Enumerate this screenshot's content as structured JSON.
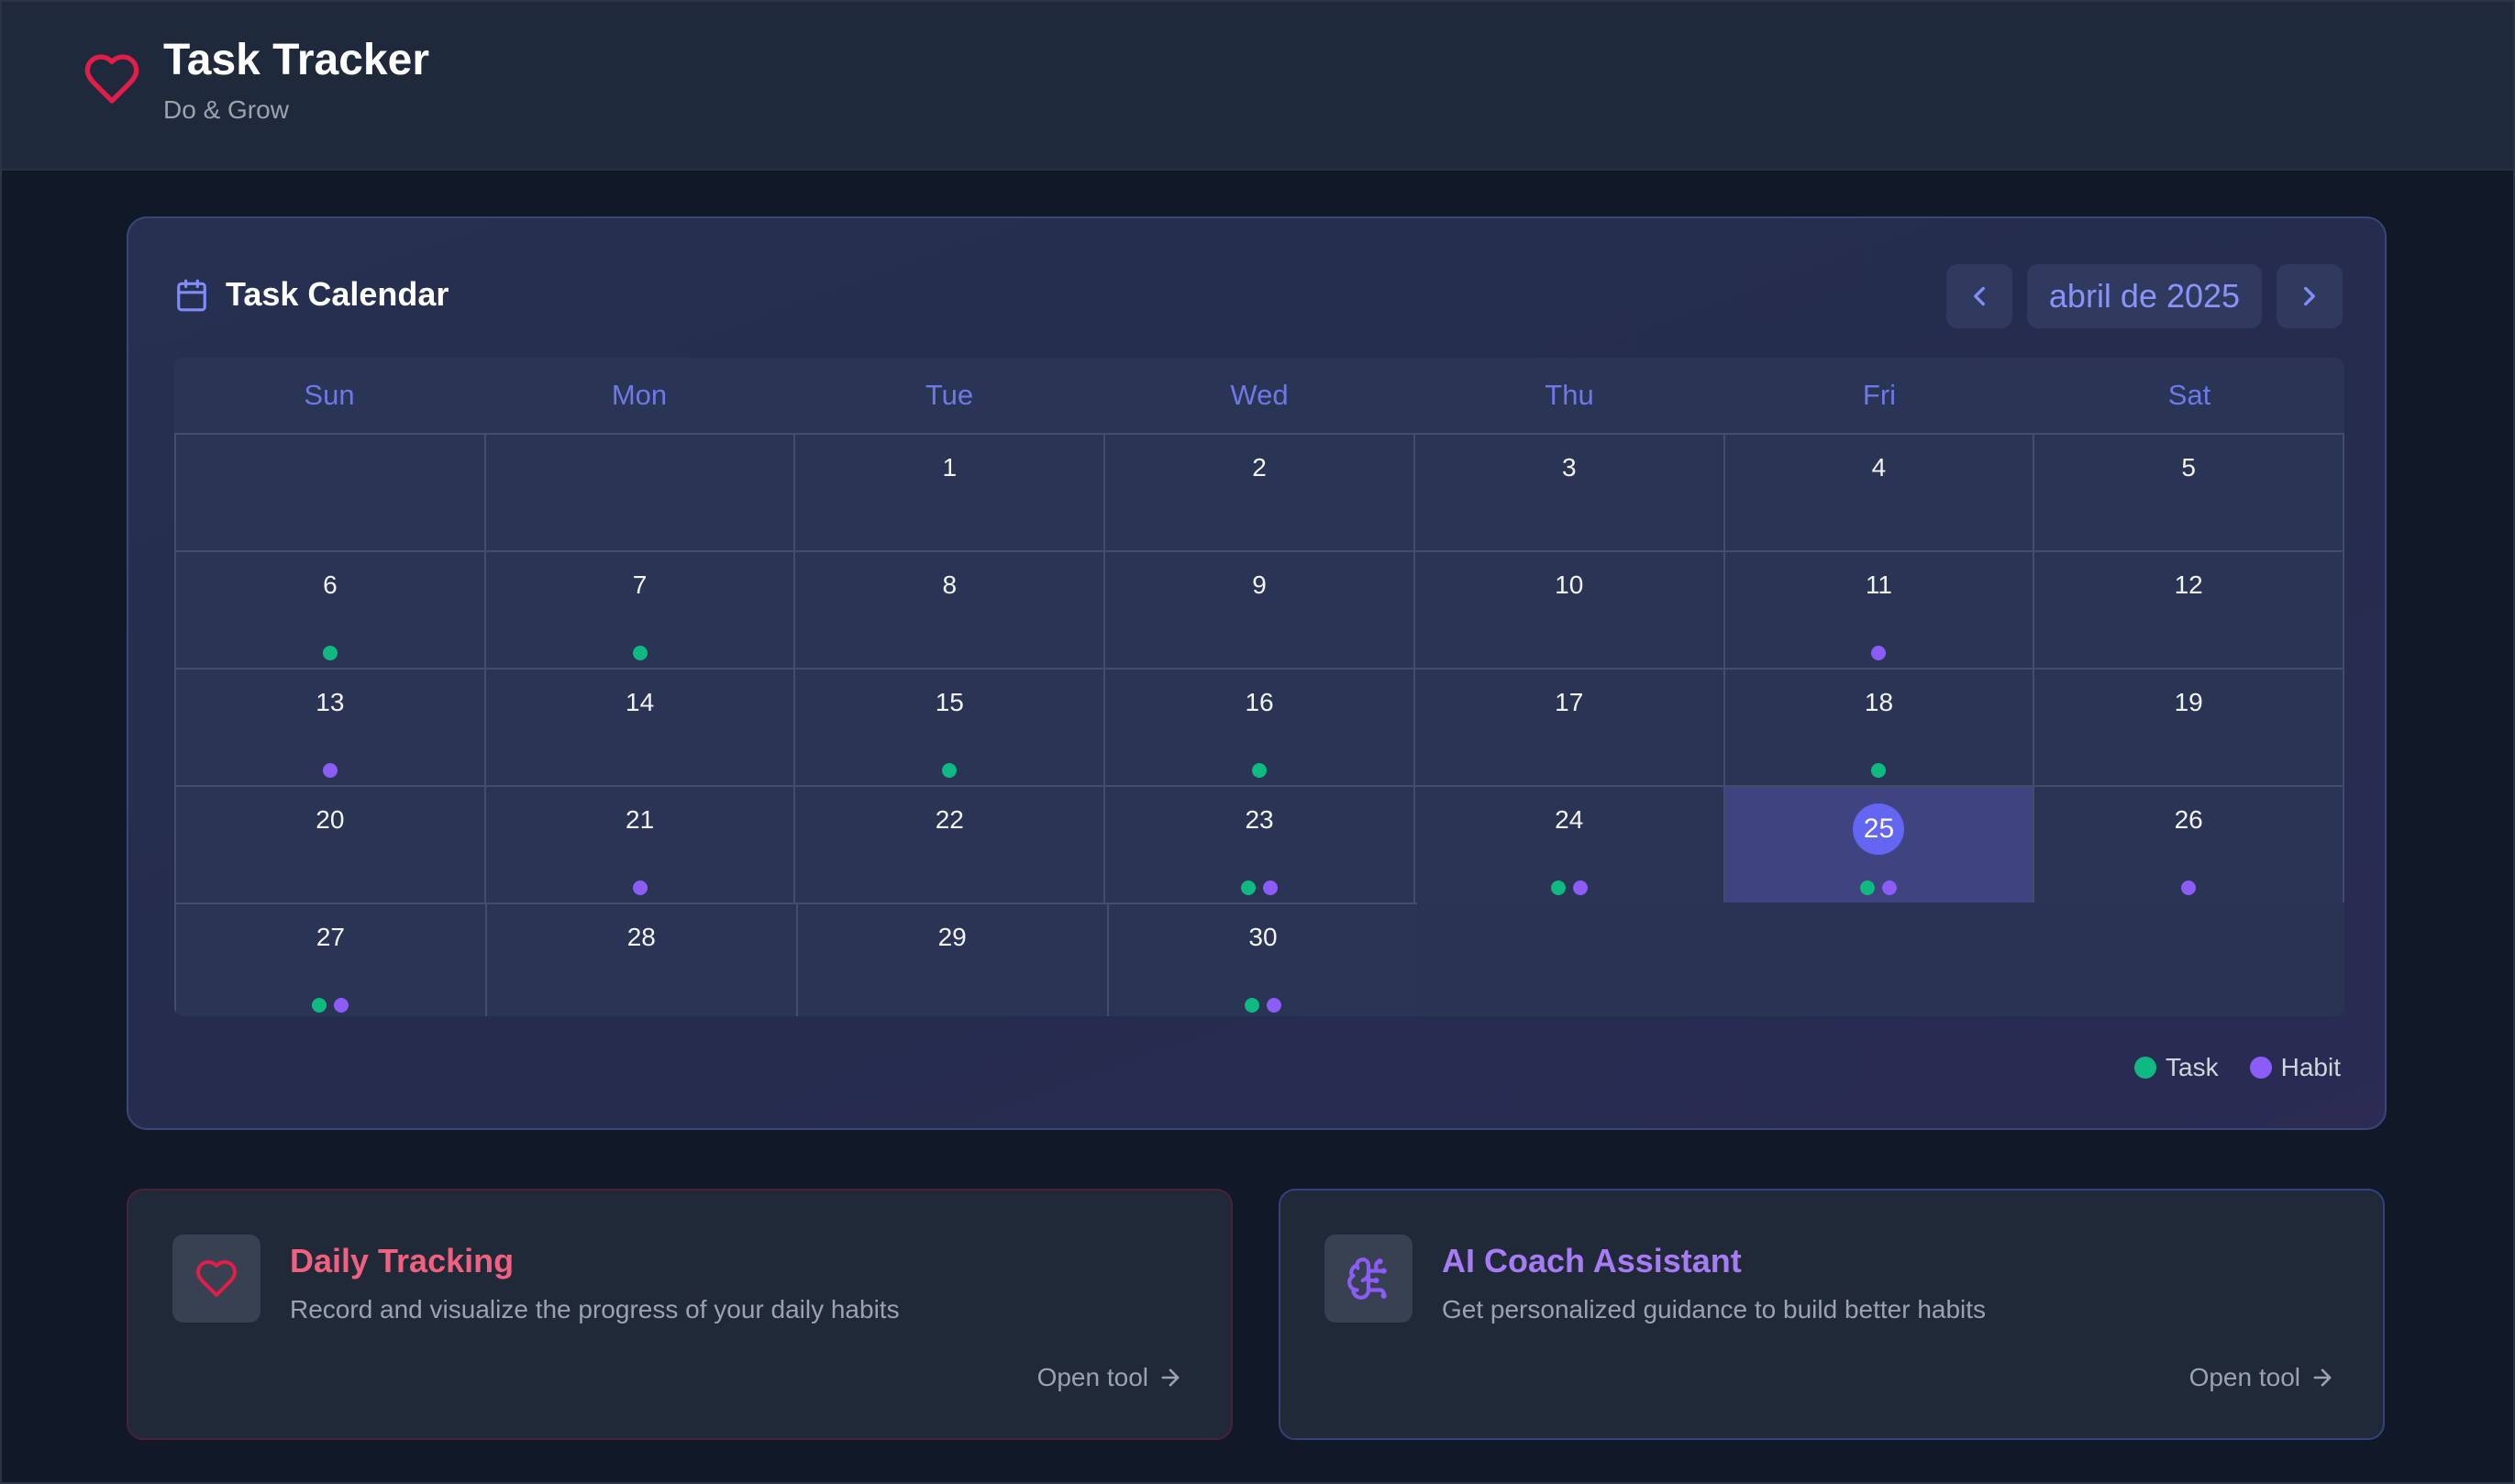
{
  "app": {
    "title": "Task Tracker",
    "subtitle": "Do & Grow",
    "logo_icon": "heart-icon",
    "accent_color": "#e11d48"
  },
  "calendar": {
    "title": "Task Calendar",
    "month_label": "abril de 2025",
    "prev_icon": "chevron-left-icon",
    "next_icon": "chevron-right-icon",
    "weekdays": [
      "Sun",
      "Mon",
      "Tue",
      "Wed",
      "Thu",
      "Fri",
      "Sat"
    ],
    "today": "25",
    "weeks": [
      [
        null,
        null,
        {
          "day": "1",
          "marks": []
        },
        {
          "day": "2",
          "marks": []
        },
        {
          "day": "3",
          "marks": []
        },
        {
          "day": "4",
          "marks": []
        },
        {
          "day": "5",
          "marks": []
        }
      ],
      [
        {
          "day": "6",
          "marks": [
            "task"
          ]
        },
        {
          "day": "7",
          "marks": [
            "task"
          ]
        },
        {
          "day": "8",
          "marks": []
        },
        {
          "day": "9",
          "marks": []
        },
        {
          "day": "10",
          "marks": []
        },
        {
          "day": "11",
          "marks": [
            "habit"
          ]
        },
        {
          "day": "12",
          "marks": []
        }
      ],
      [
        {
          "day": "13",
          "marks": [
            "habit"
          ]
        },
        {
          "day": "14",
          "marks": []
        },
        {
          "day": "15",
          "marks": [
            "task"
          ]
        },
        {
          "day": "16",
          "marks": [
            "task"
          ]
        },
        {
          "day": "17",
          "marks": []
        },
        {
          "day": "18",
          "marks": [
            "task"
          ]
        },
        {
          "day": "19",
          "marks": []
        }
      ],
      [
        {
          "day": "20",
          "marks": []
        },
        {
          "day": "21",
          "marks": [
            "habit"
          ]
        },
        {
          "day": "22",
          "marks": []
        },
        {
          "day": "23",
          "marks": [
            "task",
            "habit"
          ]
        },
        {
          "day": "24",
          "marks": [
            "task",
            "habit"
          ]
        },
        {
          "day": "25",
          "marks": [
            "task",
            "habit"
          ]
        },
        {
          "day": "26",
          "marks": [
            "habit"
          ]
        }
      ],
      [
        {
          "day": "27",
          "marks": [
            "task",
            "habit"
          ]
        },
        {
          "day": "28",
          "marks": []
        },
        {
          "day": "29",
          "marks": []
        },
        {
          "day": "30",
          "marks": [
            "task",
            "habit"
          ]
        },
        "tail",
        "tail",
        "tail"
      ]
    ],
    "legend": {
      "task_label": "Task",
      "habit_label": "Habit",
      "task_color": "#10b981",
      "habit_color": "#8b5cf6"
    }
  },
  "tools": [
    {
      "title": "Daily Tracking",
      "description": "Record and visualize the progress of your daily habits",
      "link_label": "Open tool",
      "icon": "heart-icon",
      "title_color": "#f1617f"
    },
    {
      "title": "AI Coach Assistant",
      "description": "Get personalized guidance to build better habits",
      "link_label": "Open tool",
      "icon": "brain-icon",
      "title_color": "#a77bf5"
    }
  ]
}
